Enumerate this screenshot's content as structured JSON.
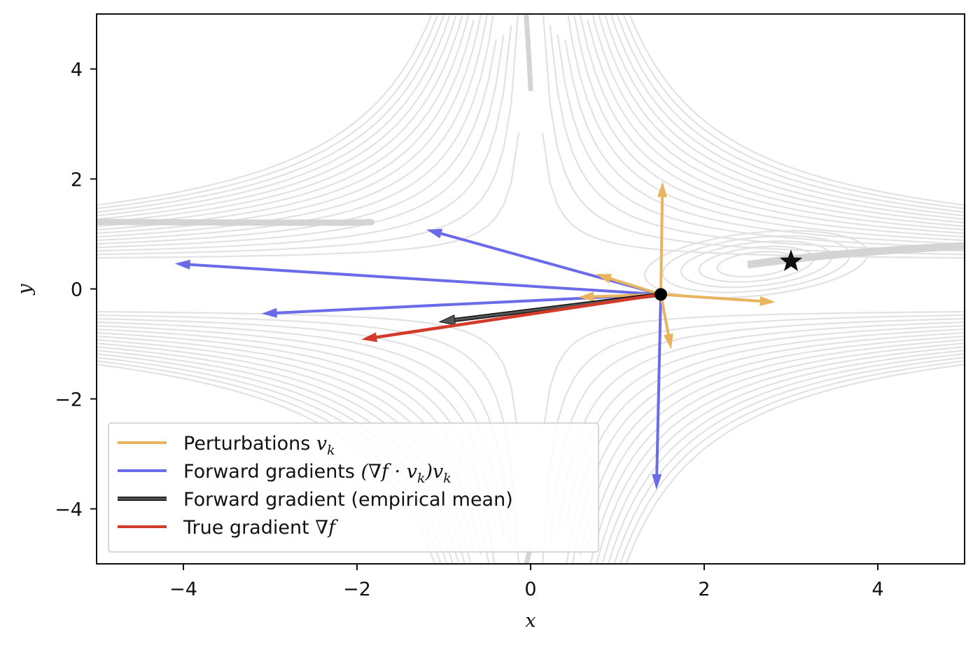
{
  "chart_data": {
    "type": "line",
    "title": "",
    "xlabel": "x",
    "ylabel": "y",
    "xlim": [
      -5,
      5
    ],
    "ylim": [
      -5,
      5
    ],
    "xticks": [
      -4,
      -2,
      0,
      2,
      4
    ],
    "yticks": [
      -4,
      -2,
      0,
      2,
      4
    ],
    "xtick_labels": [
      "−4",
      "−2",
      "0",
      "2",
      "4"
    ],
    "ytick_labels": [
      "−4",
      "−2",
      "0",
      "2",
      "4"
    ],
    "grid": false,
    "legend_position": "lower-left",
    "background": "gray contour lines",
    "current_point": {
      "x": 1.5,
      "y": -0.1
    },
    "optimum_marker": {
      "x": 3.0,
      "y": 0.5,
      "shape": "star"
    },
    "series": [
      {
        "name": "Perturbations",
        "name_math": "v",
        "name_sub": "k",
        "color": "#e8b460",
        "arrows": [
          {
            "x1": 1.5,
            "y1": -0.1,
            "x2": 1.52,
            "y2": 1.95
          },
          {
            "x1": 1.5,
            "y1": -0.1,
            "x2": 2.82,
            "y2": -0.24
          },
          {
            "x1": 1.5,
            "y1": -0.1,
            "x2": 1.62,
            "y2": -1.1
          },
          {
            "x1": 1.5,
            "y1": -0.1,
            "x2": 1.53,
            "y2": -0.3
          },
          {
            "x1": 1.5,
            "y1": -0.1,
            "x2": 0.75,
            "y2": 0.27
          },
          {
            "x1": 1.5,
            "y1": -0.1,
            "x2": 0.55,
            "y2": -0.15
          }
        ]
      },
      {
        "name": "Forward gradients",
        "name_math": "(∇f · v",
        "name_sub": "k",
        "name_tail": ")v",
        "name_sub2": "k",
        "color": "#6b6bea",
        "arrows": [
          {
            "x1": 1.5,
            "y1": -0.1,
            "x2": -1.2,
            "y2": 1.08
          },
          {
            "x1": 1.5,
            "y1": -0.1,
            "x2": -4.1,
            "y2": 0.46
          },
          {
            "x1": 1.5,
            "y1": -0.1,
            "x2": -3.1,
            "y2": -0.45
          },
          {
            "x1": 1.5,
            "y1": -0.1,
            "x2": 1.45,
            "y2": -3.65
          }
        ]
      },
      {
        "name": "Forward gradient (empirical mean)",
        "color": "#555555",
        "arrows": [
          {
            "x1": 1.5,
            "y1": -0.1,
            "x2": -1.05,
            "y2": -0.6
          }
        ]
      },
      {
        "name": "True gradient",
        "name_math": "∇f",
        "color": "#d43a2a",
        "arrows": [
          {
            "x1": 1.5,
            "y1": -0.1,
            "x2": -1.95,
            "y2": -0.92
          }
        ]
      }
    ]
  }
}
